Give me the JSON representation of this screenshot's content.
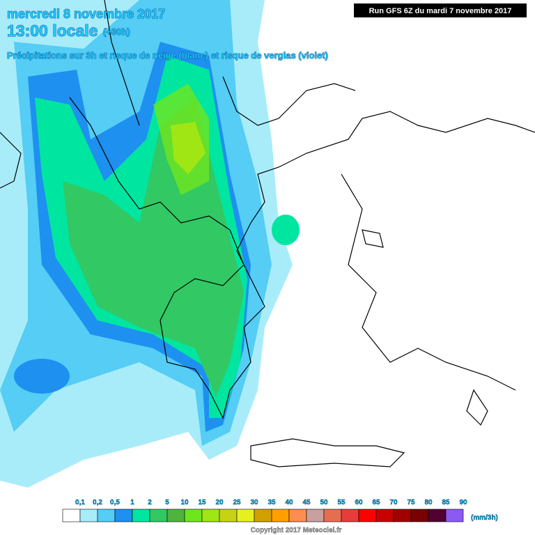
{
  "header": {
    "date": "mercredi 8 novembre 2017",
    "time": "13:00 locale",
    "lead": "(+30h)",
    "subtitle": "Précipitations sur 3h et risque de neige (blanc) et risque de verglas (violet)",
    "run": "Run GFS 6Z du mardi 7 novembre 2017"
  },
  "legend": {
    "labels": [
      "0,1",
      "0,2",
      "0,5",
      "1",
      "2",
      "5",
      "10",
      "15",
      "20",
      "25",
      "30",
      "35",
      "40",
      "45",
      "50",
      "55",
      "60",
      "65",
      "70",
      "75",
      "80",
      "85",
      "90"
    ],
    "colors": [
      "#ffffff",
      "#a8ecfa",
      "#55cdf5",
      "#1e90f0",
      "#00e6a0",
      "#32c864",
      "#50b43c",
      "#6ee61e",
      "#a0e614",
      "#c8d214",
      "#e6f01e",
      "#d2a000",
      "#ffa000",
      "#ff8c50",
      "#c8a0a0",
      "#e66e50",
      "#e63c3c",
      "#ff0000",
      "#c80000",
      "#a00000",
      "#780000",
      "#500032",
      "#8c5af0"
    ],
    "unit": "(mm/3h)"
  },
  "footer": {
    "copyright": "Copyright 2017 Meteociel.fr"
  }
}
